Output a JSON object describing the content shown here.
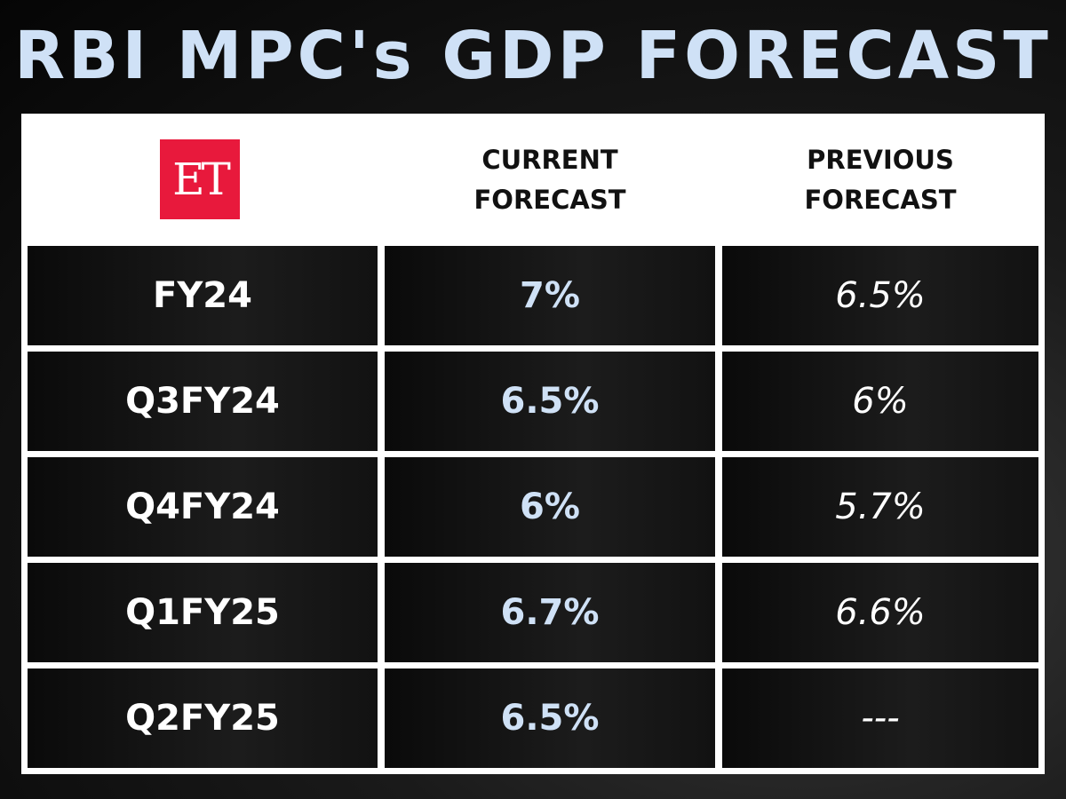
{
  "title": "RBI MPC's GDP FORECAST",
  "logo": {
    "text": "ET",
    "color": "#e8193c"
  },
  "accent_color": "#cfe1f6",
  "chart_data": {
    "type": "table",
    "columns": [
      "",
      "CURRENT FORECAST",
      "PREVIOUS FORECAST"
    ],
    "header_lines": {
      "current": [
        "CURRENT",
        "FORECAST"
      ],
      "previous": [
        "PREVIOUS",
        "FORECAST"
      ]
    },
    "rows": [
      {
        "period": "FY24",
        "current": "7%",
        "previous": "6.5%"
      },
      {
        "period": "Q3FY24",
        "current": "6.5%",
        "previous": "6%"
      },
      {
        "period": "Q4FY24",
        "current": "6%",
        "previous": "5.7%"
      },
      {
        "period": "Q1FY25",
        "current": "6.7%",
        "previous": "6.6%"
      },
      {
        "period": "Q2FY25",
        "current": "6.5%",
        "previous": "---"
      }
    ]
  }
}
